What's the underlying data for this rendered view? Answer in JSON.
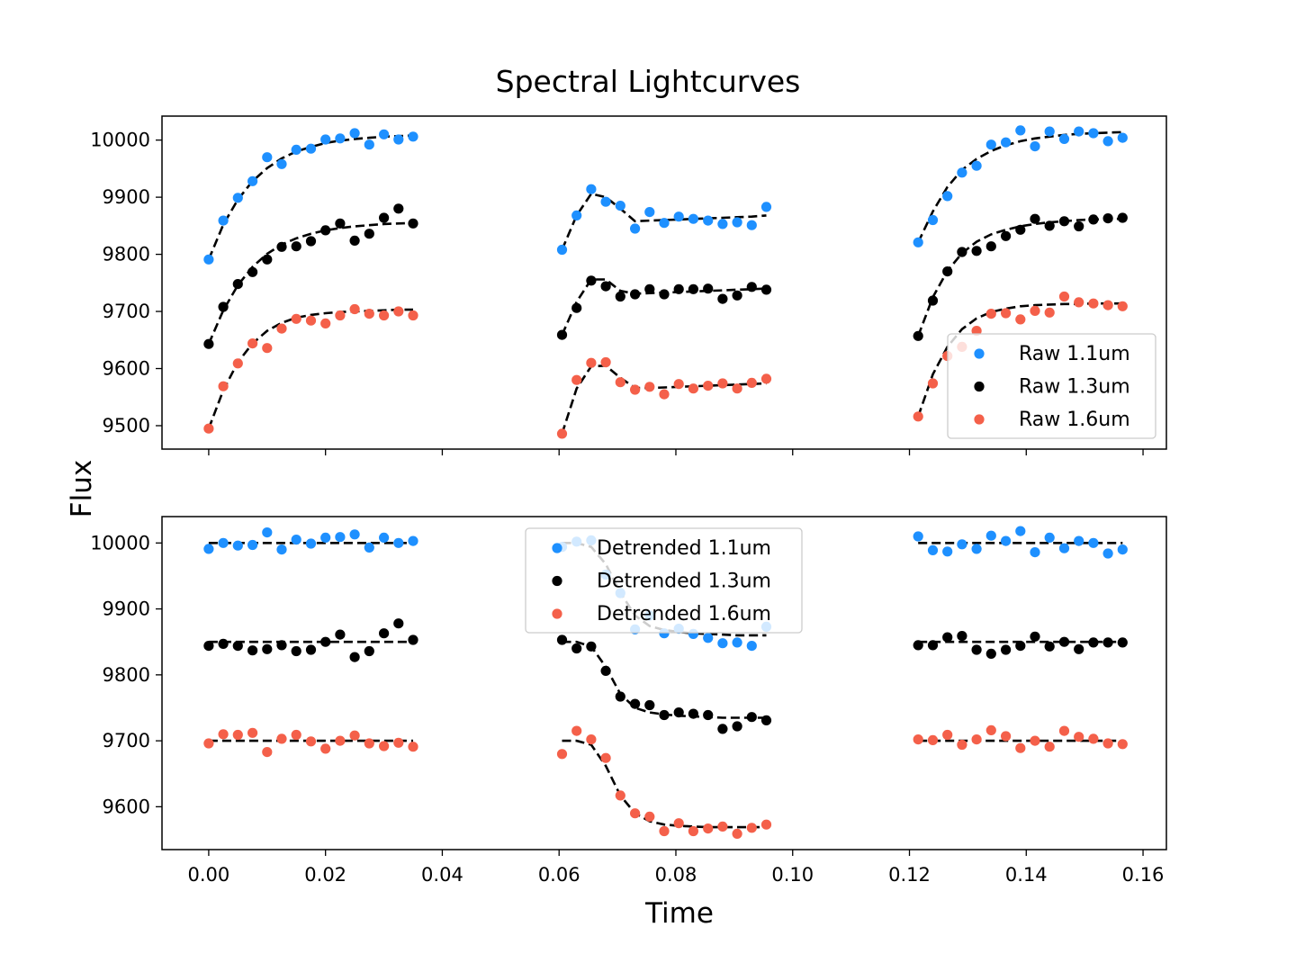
{
  "figure": {
    "title": "Spectral Lightcurves",
    "ylabel": "Flux",
    "xlabel": "Time"
  },
  "chart_data": [
    {
      "type": "scatter",
      "panel": "top",
      "title": "Spectral Lightcurves",
      "ylabel": "Flux",
      "xlabel": "",
      "xlim": [
        -0.008,
        0.164
      ],
      "ylim": [
        9459,
        10042
      ],
      "xticks": [
        0.0,
        0.02,
        0.04,
        0.06,
        0.08,
        0.1,
        0.12,
        0.14,
        0.16
      ],
      "xtick_labels": [
        "",
        "",
        "",
        "",
        "",
        "",
        "",
        "",
        ""
      ],
      "yticks": [
        9500,
        9600,
        9700,
        9800,
        9900,
        10000
      ],
      "ytick_labels": [
        "9500",
        "9600",
        "9700",
        "9800",
        "9900",
        "10000"
      ],
      "legend": {
        "position": "lower-right",
        "entries": [
          "Raw 1.1um",
          "Raw 1.3um",
          "Raw 1.6um"
        ]
      },
      "x": [
        0.0,
        0.0025,
        0.005,
        0.0075,
        0.01,
        0.0125,
        0.015,
        0.0175,
        0.02,
        0.0225,
        0.025,
        0.0275,
        0.03,
        0.0325,
        0.035,
        0.0605,
        0.063,
        0.0655,
        0.068,
        0.0705,
        0.073,
        0.0755,
        0.078,
        0.0805,
        0.083,
        0.0855,
        0.088,
        0.0905,
        0.093,
        0.0955,
        0.1215,
        0.124,
        0.1265,
        0.129,
        0.1315,
        0.134,
        0.1365,
        0.139,
        0.1415,
        0.144,
        0.1465,
        0.149,
        0.1515,
        0.154,
        0.1565
      ],
      "series": [
        {
          "name": "Raw 1.1um",
          "color": "#1e90ff",
          "values": [
            9791,
            9859,
            9899,
            9928,
            9970,
            9958,
            9983,
            9985,
            10001,
            10003,
            10012,
            9992,
            10010,
            10001,
            10006,
            9808,
            9868,
            9914,
            9892,
            9885,
            9845,
            9874,
            9855,
            9866,
            9862,
            9859,
            9853,
            9856,
            9851,
            9883,
            9821,
            9860,
            9902,
            9943,
            9955,
            9992,
            9996,
            10017,
            9989,
            10015,
            10002,
            10015,
            10012,
            9998,
            10004
          ],
          "model": [
            9791,
            9852,
            9896,
            9928,
            9951,
            9968,
            9980,
            9988,
            9995,
            9999,
            10002,
            10004,
            10006,
            10007,
            10008,
            9808,
            9868,
            9906,
            9900,
            9880,
            9858,
            9859,
            9860,
            9861,
            9862,
            9863,
            9864,
            9865,
            9866,
            9868,
            9821,
            9875,
            9918,
            9948,
            9967,
            9981,
            9991,
            9998,
            10003,
            10006,
            10009,
            10011,
            10012,
            10013,
            10014
          ]
        },
        {
          "name": "Raw 1.3um",
          "color": "#000000",
          "values": [
            9643,
            9708,
            9748,
            9769,
            9791,
            9813,
            9814,
            9823,
            9842,
            9854,
            9824,
            9836,
            9864,
            9880,
            9854,
            9659,
            9706,
            9754,
            9744,
            9726,
            9730,
            9739,
            9730,
            9739,
            9739,
            9740,
            9722,
            9728,
            9743,
            9738,
            9657,
            9719,
            9770,
            9804,
            9806,
            9814,
            9832,
            9843,
            9862,
            9850,
            9858,
            9849,
            9861,
            9863,
            9864
          ],
          "model": [
            9643,
            9702,
            9746,
            9778,
            9801,
            9817,
            9828,
            9836,
            9842,
            9846,
            9849,
            9851,
            9853,
            9854,
            9855,
            9659,
            9717,
            9756,
            9756,
            9736,
            9731,
            9732,
            9733,
            9734,
            9735,
            9736,
            9737,
            9738,
            9739,
            9740,
            9657,
            9725,
            9771,
            9802,
            9822,
            9835,
            9843,
            9849,
            9853,
            9856,
            9858,
            9860,
            9861,
            9862,
            9862
          ]
        },
        {
          "name": "Raw 1.6um",
          "color": "#f4604a",
          "values": [
            9495,
            9569,
            9609,
            9644,
            9636,
            9670,
            9687,
            9684,
            9679,
            9693,
            9704,
            9696,
            9693,
            9700,
            9693,
            9486,
            9580,
            9610,
            9611,
            9576,
            9563,
            9568,
            9555,
            9573,
            9565,
            9570,
            9574,
            9565,
            9575,
            9582,
            9516,
            9574,
            9622,
            9638,
            9666,
            9696,
            9697,
            9686,
            9701,
            9698,
            9726,
            9716,
            9714,
            9711,
            9709
          ],
          "model": [
            9495,
            9562,
            9611,
            9644,
            9666,
            9680,
            9689,
            9694,
            9697,
            9699,
            9700,
            9701,
            9702,
            9703,
            9703,
            9486,
            9565,
            9604,
            9605,
            9584,
            9566,
            9566,
            9567,
            9568,
            9569,
            9570,
            9571,
            9572,
            9573,
            9574,
            9516,
            9590,
            9638,
            9669,
            9688,
            9699,
            9705,
            9709,
            9711,
            9712,
            9713,
            9713,
            9714,
            9714,
            9714
          ]
        }
      ]
    },
    {
      "type": "scatter",
      "panel": "bottom",
      "title": "",
      "ylabel": "Flux",
      "xlabel": "Time",
      "xlim": [
        -0.008,
        0.164
      ],
      "ylim": [
        9535,
        10040
      ],
      "xticks": [
        0.0,
        0.02,
        0.04,
        0.06,
        0.08,
        0.1,
        0.12,
        0.14,
        0.16
      ],
      "xtick_labels": [
        "0.00",
        "0.02",
        "0.04",
        "0.06",
        "0.08",
        "0.10",
        "0.12",
        "0.14",
        "0.16"
      ],
      "yticks": [
        9600,
        9700,
        9800,
        9900,
        10000
      ],
      "ytick_labels": [
        "9600",
        "9700",
        "9800",
        "9900",
        "10000"
      ],
      "legend": {
        "position": "upper-center",
        "entries": [
          "Detrended 1.1um",
          "Detrended 1.3um",
          "Detrended 1.6um"
        ]
      },
      "x": [
        0.0,
        0.0025,
        0.005,
        0.0075,
        0.01,
        0.0125,
        0.015,
        0.0175,
        0.02,
        0.0225,
        0.025,
        0.0275,
        0.03,
        0.0325,
        0.035,
        0.0605,
        0.063,
        0.0655,
        0.068,
        0.0705,
        0.073,
        0.0755,
        0.078,
        0.0805,
        0.083,
        0.0855,
        0.088,
        0.0905,
        0.093,
        0.0955,
        0.1215,
        0.124,
        0.1265,
        0.129,
        0.1315,
        0.134,
        0.1365,
        0.139,
        0.1415,
        0.144,
        0.1465,
        0.149,
        0.1515,
        0.154,
        0.1565
      ],
      "series": [
        {
          "name": "Detrended 1.1um",
          "color": "#1e90ff",
          "values": [
            9991,
            10000,
            9996,
            9997,
            10016,
            9990,
            10005,
            9999,
            10008,
            10009,
            10013,
            9993,
            10008,
            10000,
            10003,
            9994,
            10002,
            10004,
            9952,
            9924,
            9869,
            9890,
            9863,
            9870,
            9862,
            9856,
            9848,
            9849,
            9844,
            9873,
            10010,
            9989,
            9987,
            9998,
            9991,
            10011,
            10003,
            10018,
            9986,
            10008,
            9992,
            10003,
            10000,
            9984,
            9990
          ],
          "model": [
            10000,
            10000,
            10000,
            10000,
            10000,
            10000,
            10000,
            10000,
            10000,
            10000,
            10000,
            10000,
            10000,
            10000,
            10000,
            10000,
            10000,
            9994,
            9968,
            9925,
            9890,
            9874,
            9868,
            9865,
            9863,
            9862,
            9861,
            9860,
            9860,
            9860,
            10000,
            10000,
            10000,
            10000,
            10000,
            10000,
            10000,
            10000,
            10000,
            10000,
            10000,
            10000,
            10000,
            10000,
            10000
          ]
        },
        {
          "name": "Detrended 1.3um",
          "color": "#000000",
          "values": [
            9844,
            9847,
            9844,
            9837,
            9839,
            9845,
            9836,
            9838,
            9850,
            9861,
            9827,
            9836,
            9863,
            9878,
            9853,
            9853,
            9840,
            9843,
            9806,
            9767,
            9756,
            9754,
            9739,
            9743,
            9741,
            9739,
            9718,
            9722,
            9736,
            9731,
            9845,
            9845,
            9857,
            9859,
            9838,
            9832,
            9838,
            9844,
            9858,
            9843,
            9850,
            9839,
            9849,
            9849,
            9849
          ],
          "model": [
            9850,
            9850,
            9850,
            9850,
            9850,
            9850,
            9850,
            9850,
            9850,
            9850,
            9850,
            9850,
            9850,
            9850,
            9850,
            9850,
            9850,
            9843,
            9812,
            9771,
            9750,
            9743,
            9740,
            9738,
            9737,
            9736,
            9735,
            9735,
            9735,
            9735,
            9850,
            9850,
            9850,
            9850,
            9850,
            9850,
            9850,
            9850,
            9850,
            9850,
            9850,
            9850,
            9850,
            9850,
            9850
          ]
        },
        {
          "name": "Detrended 1.6um",
          "color": "#f4604a",
          "values": [
            9696,
            9710,
            9709,
            9712,
            9683,
            9703,
            9709,
            9699,
            9688,
            9700,
            9708,
            9696,
            9692,
            9697,
            9691,
            9680,
            9715,
            9702,
            9674,
            9617,
            9590,
            9585,
            9563,
            9575,
            9563,
            9567,
            9570,
            9559,
            9568,
            9573,
            9702,
            9701,
            9709,
            9694,
            9702,
            9716,
            9707,
            9689,
            9700,
            9691,
            9715,
            9706,
            9703,
            9696,
            9695
          ],
          "model": [
            9700,
            9700,
            9700,
            9700,
            9700,
            9700,
            9700,
            9700,
            9700,
            9700,
            9700,
            9700,
            9700,
            9700,
            9700,
            9700,
            9700,
            9694,
            9662,
            9617,
            9590,
            9578,
            9573,
            9571,
            9570,
            9569,
            9569,
            9569,
            9569,
            9569,
            9700,
            9700,
            9700,
            9700,
            9700,
            9700,
            9700,
            9700,
            9700,
            9700,
            9700,
            9700,
            9700,
            9700,
            9700
          ]
        }
      ]
    }
  ]
}
